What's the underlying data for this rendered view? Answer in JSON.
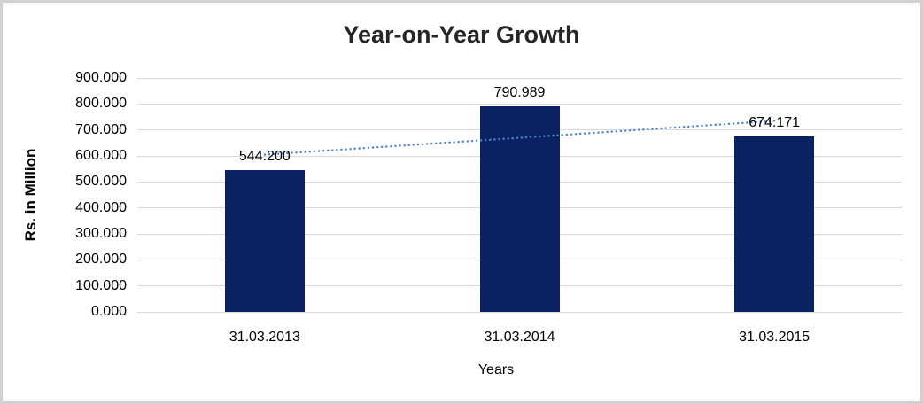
{
  "chart_data": {
    "type": "bar",
    "title": "Year-on-Year Growth",
    "categories": [
      "31.03.2013",
      "31.03.2014",
      "31.03.2015"
    ],
    "values": [
      544.2,
      790.989,
      674.171
    ],
    "data_labels": [
      "544.200",
      "790.989",
      "674.171"
    ],
    "xlabel": "Years",
    "ylabel": "Rs. in Million",
    "ylim": [
      0,
      900
    ],
    "ytick_step": 100,
    "ytick_labels": [
      "0.000",
      "100.000",
      "200.000",
      "300.000",
      "400.000",
      "500.000",
      "600.000",
      "700.000",
      "800.000",
      "900.000"
    ],
    "grid": true,
    "legend": "none",
    "trendline": {
      "type": "linear",
      "style": "dotted",
      "start_value": 604.8,
      "end_value": 734.8
    },
    "colors": {
      "bar": "#0a2261",
      "trendline": "#4c85cb",
      "gridline": "#d9d9d9",
      "title_text": "#262626",
      "axis_text": "#000000",
      "frame_border": "#d2d0d0",
      "background": "#ffffff"
    }
  }
}
